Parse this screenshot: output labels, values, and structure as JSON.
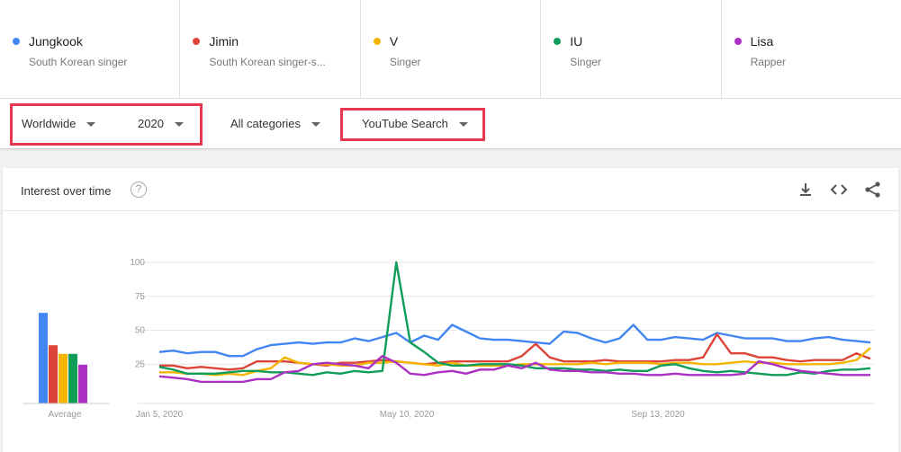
{
  "terms": [
    {
      "name": "Jungkook",
      "subtitle": "South Korean singer",
      "color": "#4285f4"
    },
    {
      "name": "Jimin",
      "subtitle": "South Korean singer-s...",
      "color": "#db4437"
    },
    {
      "name": "V",
      "subtitle": "Singer",
      "color": "#f4b400"
    },
    {
      "name": "IU",
      "subtitle": "Singer",
      "color": "#0f9d58"
    },
    {
      "name": "Lisa",
      "subtitle": "Rapper",
      "color": "#ab30c4"
    }
  ],
  "filters": {
    "region": "Worldwide",
    "year": "2020",
    "category": "All categories",
    "source": "YouTube Search"
  },
  "card": {
    "title": "Interest over time",
    "help_icon": "help-icon",
    "download_icon": "download-icon",
    "embed_icon": "embed-code-icon",
    "share_icon": "share-icon"
  },
  "chart_data": {
    "type": "line",
    "ylim": [
      0,
      100
    ],
    "yticks": [
      "100",
      "75",
      "50",
      "25"
    ],
    "x_tick_labels": [
      "Jan 5, 2020",
      "May 10, 2020",
      "Sep 13, 2020"
    ],
    "average_label": "Average",
    "averages": [
      42,
      27,
      23,
      23,
      18
    ],
    "series": [
      {
        "name": "Jungkook",
        "color": "#4285f4",
        "values": [
          34,
          35,
          33,
          34,
          34,
          31,
          31,
          36,
          39,
          40,
          41,
          40,
          41,
          41,
          44,
          42,
          45,
          48,
          41,
          46,
          43,
          54,
          49,
          44,
          43,
          43,
          42,
          41,
          40,
          49,
          48,
          44,
          41,
          44,
          54,
          43,
          43,
          45,
          44,
          43,
          48,
          46,
          44,
          44,
          44,
          42,
          42,
          44,
          45,
          43,
          42,
          41
        ]
      },
      {
        "name": "Jimin",
        "color": "#db4437",
        "values": [
          24,
          24,
          22,
          23,
          22,
          21,
          22,
          27,
          27,
          27,
          26,
          25,
          24,
          26,
          26,
          27,
          28,
          27,
          26,
          25,
          26,
          27,
          27,
          27,
          27,
          27,
          31,
          40,
          30,
          27,
          27,
          27,
          28,
          27,
          27,
          27,
          27,
          28,
          28,
          30,
          47,
          33,
          33,
          30,
          30,
          28,
          27,
          28,
          28,
          28,
          33,
          29
        ]
      },
      {
        "name": "V",
        "color": "#f4b400",
        "values": [
          19,
          19,
          18,
          18,
          17,
          18,
          17,
          20,
          22,
          30,
          26,
          25,
          25,
          24,
          24,
          26,
          26,
          27,
          26,
          25,
          24,
          26,
          24,
          24,
          24,
          24,
          25,
          25,
          25,
          25,
          25,
          26,
          25,
          26,
          26,
          26,
          25,
          26,
          26,
          25,
          25,
          26,
          27,
          26,
          26,
          25,
          25,
          25,
          25,
          26,
          28,
          37
        ]
      },
      {
        "name": "IU",
        "color": "#0f9d58",
        "values": [
          23,
          21,
          18,
          18,
          18,
          19,
          20,
          20,
          19,
          19,
          18,
          17,
          19,
          18,
          20,
          19,
          20,
          100,
          41,
          34,
          26,
          24,
          24,
          25,
          25,
          25,
          24,
          22,
          22,
          22,
          21,
          21,
          20,
          21,
          20,
          20,
          24,
          25,
          22,
          20,
          19,
          20,
          19,
          18,
          17,
          17,
          19,
          18,
          20,
          21,
          21,
          22
        ]
      },
      {
        "name": "Lisa",
        "color": "#ab30c4",
        "values": [
          16,
          15,
          14,
          12,
          12,
          12,
          12,
          14,
          14,
          19,
          20,
          25,
          26,
          25,
          24,
          22,
          31,
          26,
          18,
          17,
          19,
          20,
          18,
          21,
          21,
          24,
          22,
          26,
          21,
          20,
          20,
          19,
          19,
          18,
          18,
          17,
          17,
          18,
          17,
          17,
          17,
          17,
          18,
          27,
          25,
          22,
          20,
          19,
          18,
          17,
          17,
          17
        ]
      }
    ]
  }
}
